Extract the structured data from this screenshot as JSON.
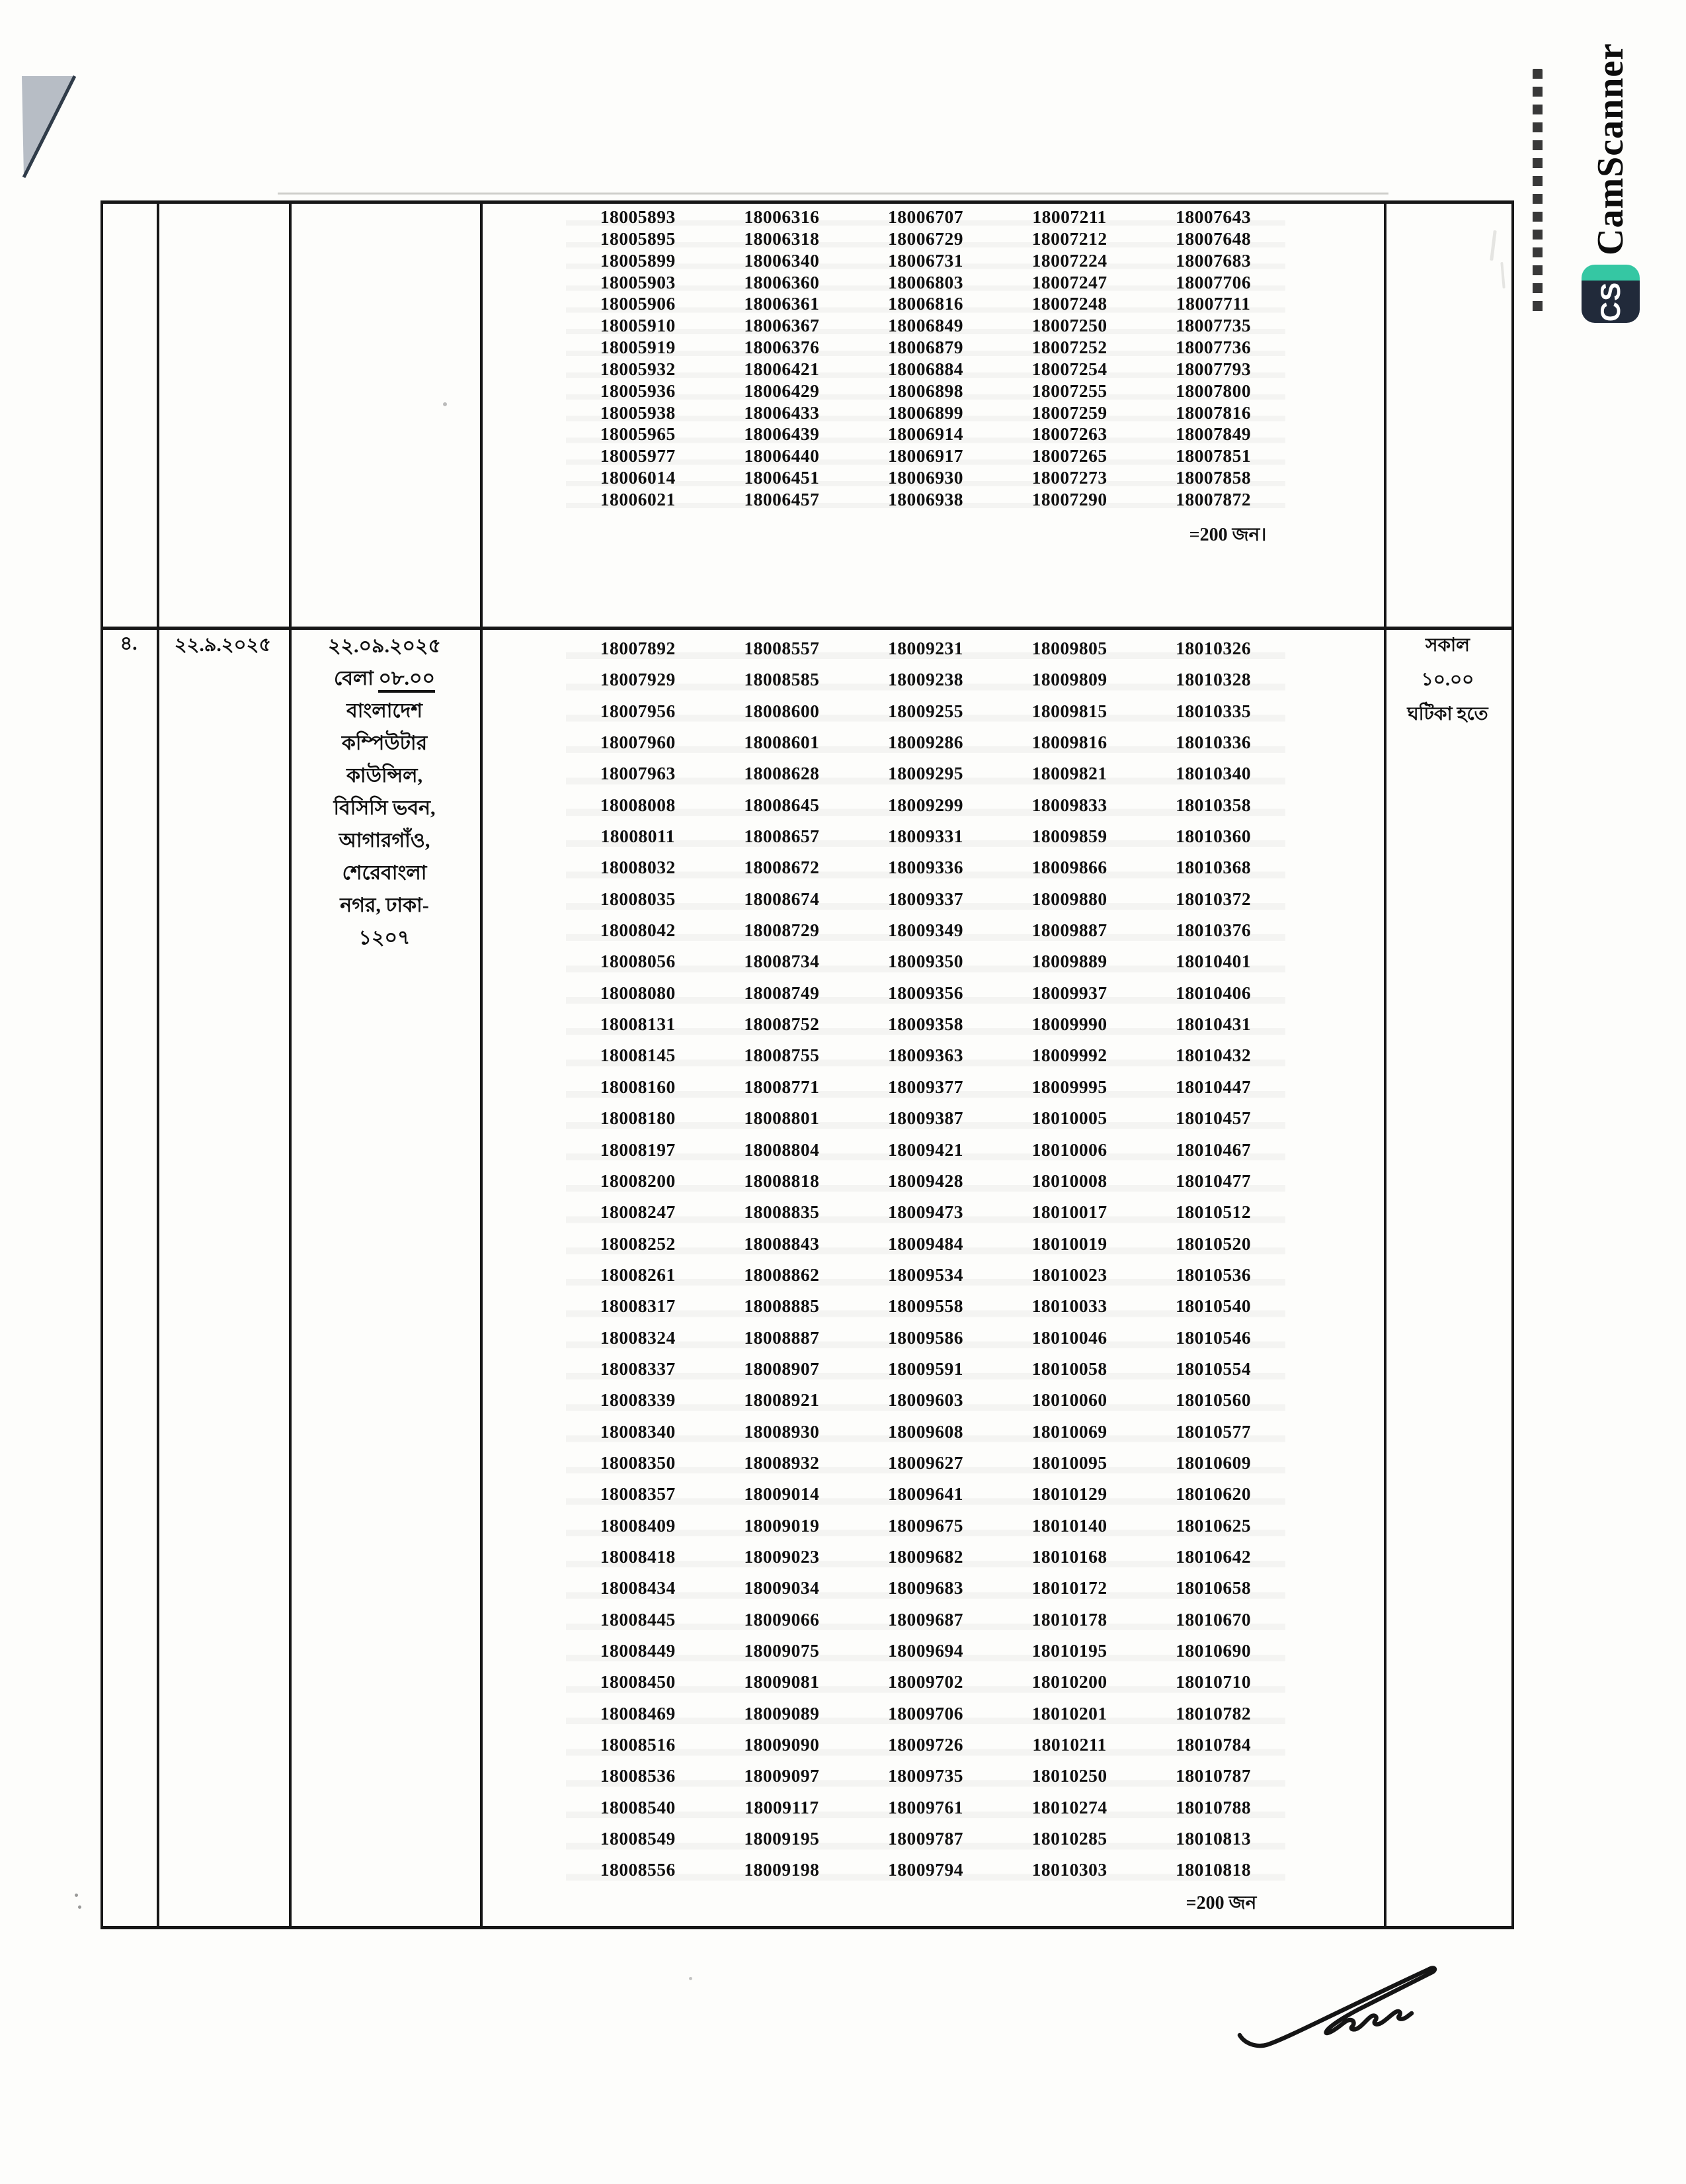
{
  "watermark": {
    "icon": "CS",
    "name": "CamScanner"
  },
  "table": {
    "continuation_row": {
      "roll_columns": [
        [
          "18005893",
          "18005895",
          "18005899",
          "18005903",
          "18005906",
          "18005910",
          "18005919",
          "18005932",
          "18005936",
          "18005938",
          "18005965",
          "18005977",
          "18006014",
          "18006021"
        ],
        [
          "18006316",
          "18006318",
          "18006340",
          "18006360",
          "18006361",
          "18006367",
          "18006376",
          "18006421",
          "18006429",
          "18006433",
          "18006439",
          "18006440",
          "18006451",
          "18006457"
        ],
        [
          "18006707",
          "18006729",
          "18006731",
          "18006803",
          "18006816",
          "18006849",
          "18006879",
          "18006884",
          "18006898",
          "18006899",
          "18006914",
          "18006917",
          "18006930",
          "18006938"
        ],
        [
          "18007211",
          "18007212",
          "18007224",
          "18007247",
          "18007248",
          "18007250",
          "18007252",
          "18007254",
          "18007255",
          "18007259",
          "18007263",
          "18007265",
          "18007273",
          "18007290"
        ],
        [
          "18007643",
          "18007648",
          "18007683",
          "18007706",
          "18007711",
          "18007735",
          "18007736",
          "18007793",
          "18007800",
          "18007816",
          "18007849",
          "18007851",
          "18007858",
          "18007872"
        ]
      ],
      "total": "=200 জন।"
    },
    "row": {
      "serial": "৪.",
      "exam_date": "২২.৯.২০২৫",
      "report_date": "২২.০৯.২০২৫",
      "report_time_prefix": "বেলা",
      "report_time": "০৮.০০",
      "venue_lines": [
        "বাংলাদেশ",
        "কম্পিউটার",
        "কাউন্সিল,",
        "বিসিসি ভবন,",
        "আগারগাঁও,",
        "শেরেবাংলা",
        "নগর, ঢাকা-",
        "১২০৭"
      ],
      "roll_columns": [
        [
          "18007892",
          "18007929",
          "18007956",
          "18007960",
          "18007963",
          "18008008",
          "18008011",
          "18008032",
          "18008035",
          "18008042",
          "18008056",
          "18008080",
          "18008131",
          "18008145",
          "18008160",
          "18008180",
          "18008197",
          "18008200",
          "18008247",
          "18008252",
          "18008261",
          "18008317",
          "18008324",
          "18008337",
          "18008339",
          "18008340",
          "18008350",
          "18008357",
          "18008409",
          "18008418",
          "18008434",
          "18008445",
          "18008449",
          "18008450",
          "18008469",
          "18008516",
          "18008536",
          "18008540",
          "18008549",
          "18008556"
        ],
        [
          "18008557",
          "18008585",
          "18008600",
          "18008601",
          "18008628",
          "18008645",
          "18008657",
          "18008672",
          "18008674",
          "18008729",
          "18008734",
          "18008749",
          "18008752",
          "18008755",
          "18008771",
          "18008801",
          "18008804",
          "18008818",
          "18008835",
          "18008843",
          "18008862",
          "18008885",
          "18008887",
          "18008907",
          "18008921",
          "18008930",
          "18008932",
          "18009014",
          "18009019",
          "18009023",
          "18009034",
          "18009066",
          "18009075",
          "18009081",
          "18009089",
          "18009090",
          "18009097",
          "18009117",
          "18009195",
          "18009198"
        ],
        [
          "18009231",
          "18009238",
          "18009255",
          "18009286",
          "18009295",
          "18009299",
          "18009331",
          "18009336",
          "18009337",
          "18009349",
          "18009350",
          "18009356",
          "18009358",
          "18009363",
          "18009377",
          "18009387",
          "18009421",
          "18009428",
          "18009473",
          "18009484",
          "18009534",
          "18009558",
          "18009586",
          "18009591",
          "18009603",
          "18009608",
          "18009627",
          "18009641",
          "18009675",
          "18009682",
          "18009683",
          "18009687",
          "18009694",
          "18009702",
          "18009706",
          "18009726",
          "18009735",
          "18009761",
          "18009787",
          "18009794"
        ],
        [
          "18009805",
          "18009809",
          "18009815",
          "18009816",
          "18009821",
          "18009833",
          "18009859",
          "18009866",
          "18009880",
          "18009887",
          "18009889",
          "18009937",
          "18009990",
          "18009992",
          "18009995",
          "18010005",
          "18010006",
          "18010008",
          "18010017",
          "18010019",
          "18010023",
          "18010033",
          "18010046",
          "18010058",
          "18010060",
          "18010069",
          "18010095",
          "18010129",
          "18010140",
          "18010168",
          "18010172",
          "18010178",
          "18010195",
          "18010200",
          "18010201",
          "18010211",
          "18010250",
          "18010274",
          "18010285",
          "18010303"
        ],
        [
          "18010326",
          "18010328",
          "18010335",
          "18010336",
          "18010340",
          "18010358",
          "18010360",
          "18010368",
          "18010372",
          "18010376",
          "18010401",
          "18010406",
          "18010431",
          "18010432",
          "18010447",
          "18010457",
          "18010467",
          "18010477",
          "18010512",
          "18010520",
          "18010536",
          "18010540",
          "18010546",
          "18010554",
          "18010560",
          "18010577",
          "18010609",
          "18010620",
          "18010625",
          "18010642",
          "18010658",
          "18010670",
          "18010690",
          "18010710",
          "18010782",
          "18010784",
          "18010787",
          "18010788",
          "18010813",
          "18010818"
        ]
      ],
      "total": "=200 জন",
      "note_lines": [
        "সকাল",
        "১০.০০",
        "ঘটিকা হতে"
      ]
    }
  }
}
